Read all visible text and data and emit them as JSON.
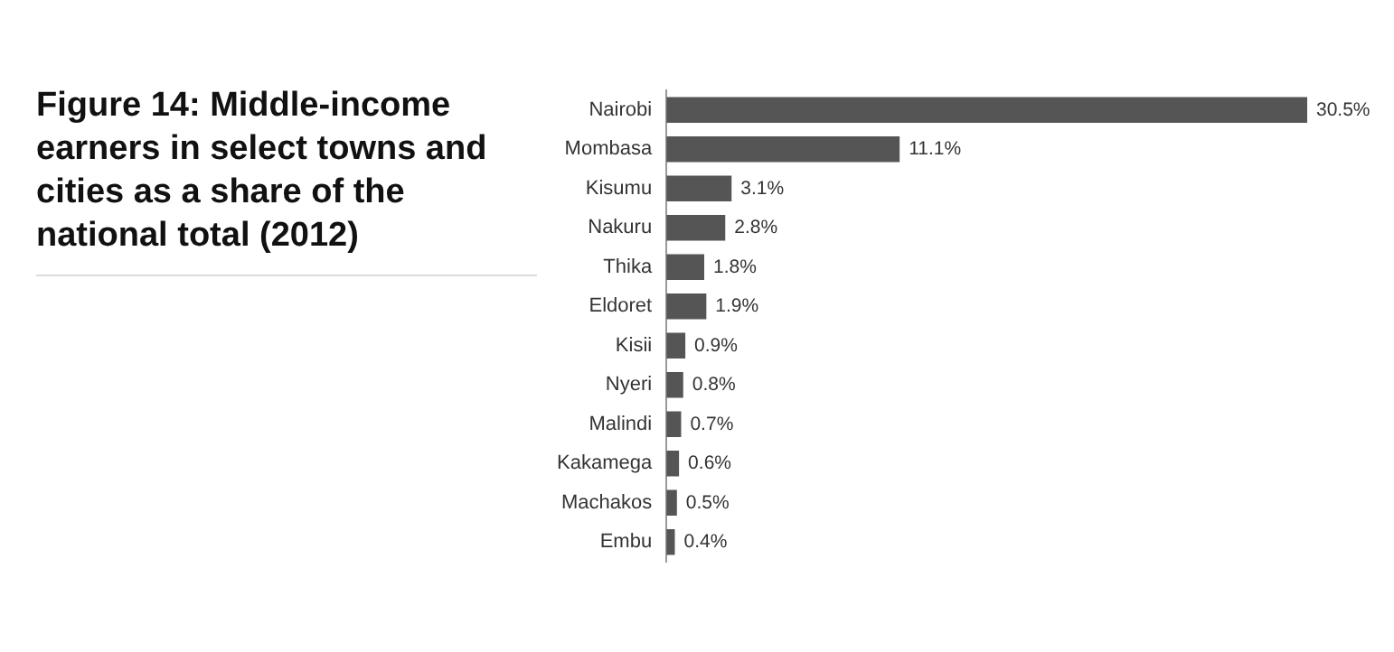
{
  "chart_data": {
    "type": "bar",
    "orientation": "horizontal",
    "title": "Figure 14: Middle-income earners in select towns and cities as a share of the national total (2012)",
    "categories": [
      "Nairobi",
      "Mombasa",
      "Kisumu",
      "Nakuru",
      "Thika",
      "Eldoret",
      "Kisii",
      "Nyeri",
      "Malindi",
      "Kakamega",
      "Machakos",
      "Embu"
    ],
    "values": [
      30.5,
      11.1,
      3.1,
      2.8,
      1.8,
      1.9,
      0.9,
      0.8,
      0.7,
      0.6,
      0.5,
      0.4
    ],
    "value_labels": [
      "30.5%",
      "11.1%",
      "3.1%",
      "2.8%",
      "1.8%",
      "1.9%",
      "0.9%",
      "0.8%",
      "0.7%",
      "0.6%",
      "0.5%",
      "0.4%"
    ],
    "color": "#555555",
    "tick_labels": "y",
    "legend": false
  }
}
